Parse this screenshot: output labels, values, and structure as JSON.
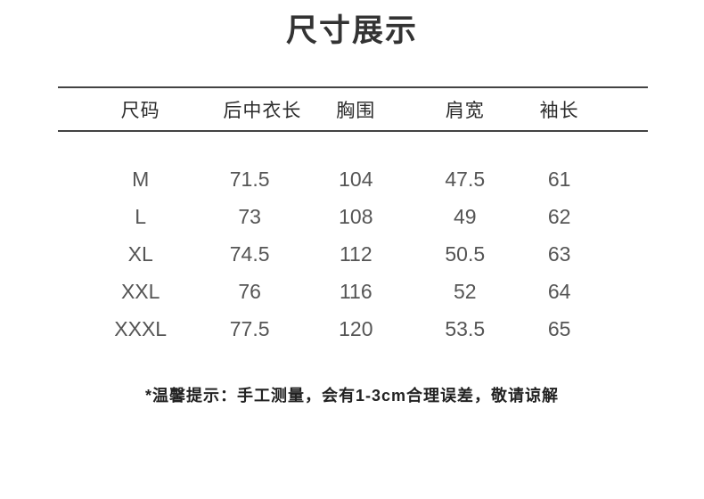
{
  "page": {
    "title": "尺寸展示",
    "note": "*温馨提示：手工测量，会有1-3cm合理误差，敬请谅解"
  },
  "table": {
    "headers": [
      "尺码",
      "后中衣长",
      "胸围",
      "肩宽",
      "袖长"
    ],
    "rows": [
      [
        "M",
        "71.5",
        "104",
        "47.5",
        "61"
      ],
      [
        "L",
        "73",
        "108",
        "49",
        "62"
      ],
      [
        "XL",
        "74.5",
        "112",
        "50.5",
        "63"
      ],
      [
        "XXL",
        "76",
        "116",
        "52",
        "64"
      ],
      [
        "XXXL",
        "77.5",
        "120",
        "53.5",
        "65"
      ]
    ]
  },
  "colors": {
    "background": "#ffffff",
    "title_text": "#333333",
    "header_text": "#2b2b2b",
    "value_text": "#555555",
    "note_text": "#222222",
    "divider": "#434343"
  }
}
